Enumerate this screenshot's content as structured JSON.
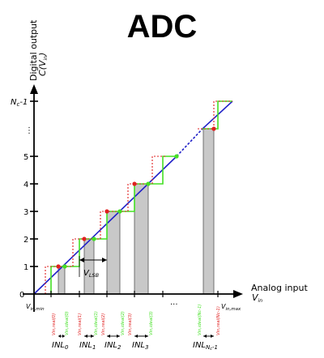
{
  "title": "ADC",
  "y_axis": {
    "label": "Digital output",
    "sublabel": "C(V",
    "sublabel_sub": "in",
    "sublabel_end": ")",
    "ticks": [
      "0",
      "1",
      "2",
      "3",
      "4",
      "5",
      "⋮",
      "N",
      "c",
      "-1"
    ]
  },
  "x_axis": {
    "label": "Analog input",
    "sublabel": "V",
    "sublabel_sub": "in",
    "min_label": "V",
    "min_sub": "in,min",
    "max_label": "V",
    "max_sub": "in,max",
    "dots": "..."
  },
  "vlsb": {
    "label": "V",
    "sub": "LSB"
  },
  "threshold_labels": {
    "real": [
      "V",
      "in,real(0)",
      "in,real(1)",
      "in,real(2)",
      "in,real(3)",
      "in,real(N",
      "c",
      "-1)"
    ],
    "ideal": [
      "in,ideal(0)",
      "in,ideal(1)",
      "in,ideal(2)",
      "in,ideal(3)",
      "in,ideal(N"
    ]
  },
  "inl_labels": [
    {
      "main": "INL",
      "sub": "0"
    },
    {
      "main": "INL",
      "sub": "1"
    },
    {
      "main": "INL",
      "sub": "2"
    },
    {
      "main": "INL",
      "sub": "3"
    },
    {
      "main": "INL",
      "sub": "N",
      "sub2": "c",
      "sub3": "-1"
    }
  ],
  "colors": {
    "ideal_line": "#2020c8",
    "ideal_step": "#44e024",
    "real_step": "#e02020",
    "bar_fill": "#c8c8c8",
    "axis": "#000000"
  }
}
